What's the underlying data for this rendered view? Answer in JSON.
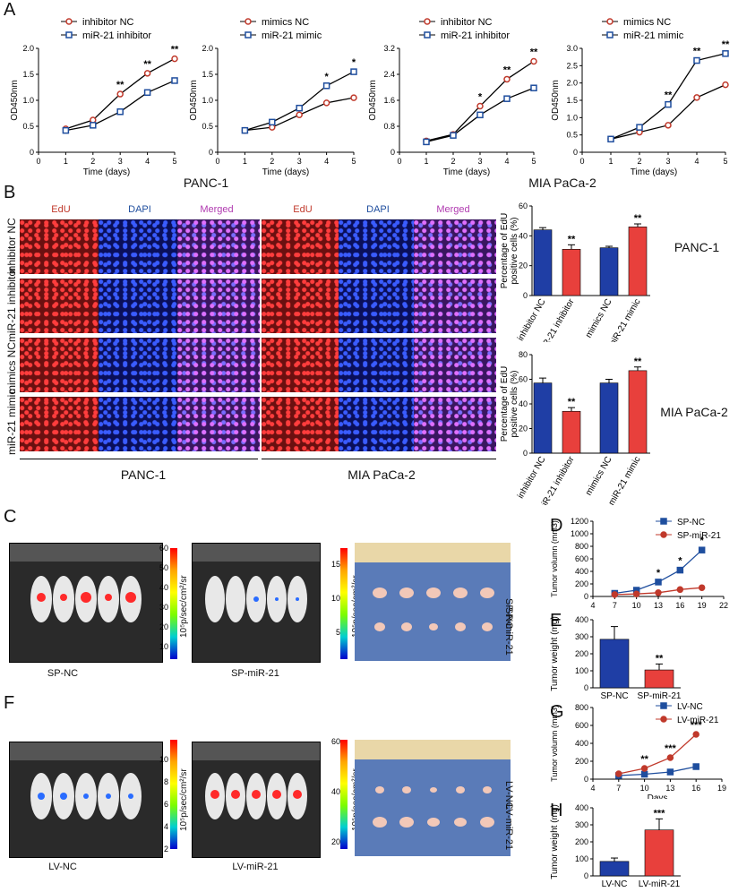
{
  "panels": {
    "A": "A",
    "B": "B",
    "C": "C",
    "D": "D",
    "E": "E",
    "F": "F",
    "G": "G",
    "H": "H"
  },
  "colors": {
    "nc": "#c0392b",
    "treat": "#1f4e9e",
    "bar_blue": "#1f3ea5",
    "bar_red": "#e8403c"
  },
  "cell_lines": {
    "panc": "PANC-1",
    "mia": "MIA PaCa-2"
  },
  "panel_B": {
    "channels": [
      "EdU",
      "DAPI",
      "Merged"
    ],
    "rows": [
      "inhibitor NC",
      "miR-21 inhibitor",
      "mimics NC",
      "miR-21 mimic"
    ]
  },
  "panel_C": {
    "labels": [
      "SP-NC",
      "SP-miR-21"
    ],
    "unit": "10⁵p/sec/cm²/sr",
    "scale_left": [
      "60",
      "50",
      "40",
      "30",
      "20",
      "10"
    ],
    "scale_right": [
      "15",
      "10",
      "5"
    ],
    "tray_labels": [
      "SP-NC",
      "SP-miR-21"
    ]
  },
  "panel_F": {
    "labels": [
      "LV-NC",
      "LV-miR-21"
    ],
    "unit": "10⁵p/sec/cm²/sr",
    "scale_left": [
      "10",
      "8",
      "6",
      "4",
      "2"
    ],
    "scale_right": [
      "60",
      "40",
      "20"
    ],
    "tray_labels": [
      "LV-NC",
      "LV-miR-21"
    ]
  },
  "chart_data": [
    {
      "id": "A1",
      "type": "line",
      "title": "",
      "xlabel": "Time (days)",
      "ylabel": "OD450nm",
      "xlim": [
        0,
        5
      ],
      "ylim": [
        0,
        2.0
      ],
      "yticks": [
        "0",
        "0.5",
        "1.0",
        "1.5",
        "2.0"
      ],
      "xticks": [
        "0",
        "1",
        "2",
        "3",
        "4",
        "5"
      ],
      "x": [
        1,
        2,
        3,
        4,
        5
      ],
      "series": [
        {
          "name": "inhibitor NC",
          "values": [
            0.45,
            0.62,
            1.12,
            1.52,
            1.8
          ],
          "role": "nc"
        },
        {
          "name": "miR-21 inhibitor",
          "values": [
            0.42,
            0.52,
            0.78,
            1.15,
            1.38
          ],
          "role": "treat"
        }
      ],
      "sig": [
        "",
        "",
        "**",
        "**",
        "**"
      ]
    },
    {
      "id": "A2",
      "type": "line",
      "title": "",
      "xlabel": "Time (days)",
      "ylabel": "OD450nm",
      "xlim": [
        0,
        5
      ],
      "ylim": [
        0,
        2.0
      ],
      "yticks": [
        "0",
        "0.5",
        "1.0",
        "1.5",
        "2.0"
      ],
      "xticks": [
        "0",
        "1",
        "2",
        "3",
        "4",
        "5"
      ],
      "x": [
        1,
        2,
        3,
        4,
        5
      ],
      "series": [
        {
          "name": "mimics NC",
          "values": [
            0.42,
            0.48,
            0.72,
            0.95,
            1.05
          ],
          "role": "nc"
        },
        {
          "name": "miR-21 mimic",
          "values": [
            0.42,
            0.58,
            0.85,
            1.28,
            1.55
          ],
          "role": "treat"
        }
      ],
      "sig": [
        "",
        "",
        "",
        "*",
        "*"
      ]
    },
    {
      "id": "A3",
      "type": "line",
      "title": "",
      "xlabel": "Time (days)",
      "ylabel": "OD450nm",
      "xlim": [
        0,
        5
      ],
      "ylim": [
        0,
        3.2
      ],
      "yticks": [
        "0",
        "0.8",
        "1.6",
        "2.4",
        "3.2"
      ],
      "xticks": [
        "0",
        "1",
        "2",
        "3",
        "4",
        "5"
      ],
      "x": [
        1,
        2,
        3,
        4,
        5
      ],
      "series": [
        {
          "name": "inhibitor NC",
          "values": [
            0.35,
            0.55,
            1.42,
            2.25,
            2.8
          ],
          "role": "nc"
        },
        {
          "name": "miR-21 inhibitor",
          "values": [
            0.32,
            0.52,
            1.15,
            1.65,
            1.98
          ],
          "role": "treat"
        }
      ],
      "sig": [
        "",
        "",
        "*",
        "**",
        "**"
      ]
    },
    {
      "id": "A4",
      "type": "line",
      "title": "",
      "xlabel": "Time (days)",
      "ylabel": "OD450nm",
      "xlim": [
        0,
        5
      ],
      "ylim": [
        0,
        3.0
      ],
      "yticks": [
        "0",
        "0.5",
        "1.0",
        "1.5",
        "2.0",
        "2.5",
        "3.0"
      ],
      "xticks": [
        "0",
        "1",
        "2",
        "3",
        "4",
        "5"
      ],
      "x": [
        1,
        2,
        3,
        4,
        5
      ],
      "series": [
        {
          "name": "mimics NC",
          "values": [
            0.38,
            0.58,
            0.78,
            1.58,
            1.95
          ],
          "role": "nc"
        },
        {
          "name": "miR-21 mimic",
          "values": [
            0.38,
            0.72,
            1.38,
            2.65,
            2.85
          ],
          "role": "treat"
        }
      ],
      "sig": [
        "",
        "",
        "**",
        "**",
        "**"
      ]
    },
    {
      "id": "B1",
      "type": "bar",
      "ylabel": "Percentage of EdU positive cells (%)",
      "ylim": [
        0,
        60
      ],
      "yticks": [
        "0",
        "20",
        "40",
        "60"
      ],
      "categories": [
        "inhibitor NC",
        "miR-21 inhibitor",
        "mimics NC",
        "miR-21 mimic"
      ],
      "values": [
        44,
        31,
        32,
        46
      ],
      "errors": [
        1.5,
        3,
        1,
        2
      ],
      "sig": [
        "",
        "**",
        "",
        "**"
      ],
      "line": "PANC-1"
    },
    {
      "id": "B2",
      "type": "bar",
      "ylabel": "Percentage of EdU positive cells (%)",
      "ylim": [
        0,
        80
      ],
      "yticks": [
        "0",
        "20",
        "40",
        "60",
        "80"
      ],
      "categories": [
        "inhibitor NC",
        "miR-21 inhibitor",
        "mimics NC",
        "miR-21 mimic"
      ],
      "values": [
        57,
        34,
        57,
        67
      ],
      "errors": [
        4,
        3,
        3,
        3
      ],
      "sig": [
        "",
        "**",
        "",
        "**"
      ],
      "line": "MIA PaCa-2"
    },
    {
      "id": "D",
      "type": "line",
      "xlabel": "Days",
      "ylabel": "Tumor volumn (mm3)",
      "xlim": [
        4,
        22
      ],
      "ylim": [
        0,
        1200
      ],
      "yticks": [
        "0",
        "200",
        "400",
        "600",
        "800",
        "1000",
        "1200"
      ],
      "xticks": [
        "4",
        "7",
        "10",
        "13",
        "16",
        "19",
        "22"
      ],
      "x": [
        7,
        10,
        13,
        16,
        19
      ],
      "series": [
        {
          "name": "SP-NC",
          "values": [
            50,
            100,
            230,
            420,
            740
          ],
          "role": "treat"
        },
        {
          "name": "SP-miR-21",
          "values": [
            30,
            40,
            60,
            110,
            140
          ],
          "role": "nc"
        }
      ],
      "sig": [
        "",
        "",
        "*",
        "*",
        "*"
      ]
    },
    {
      "id": "E",
      "type": "bar",
      "ylabel": "Tumor weight (mg)",
      "ylim": [
        0,
        400
      ],
      "yticks": [
        "0",
        "100",
        "200",
        "300",
        "400"
      ],
      "categories": [
        "SP-NC",
        "SP-miR-21"
      ],
      "values": [
        285,
        105
      ],
      "errors": [
        75,
        35
      ],
      "sig": [
        "",
        "**"
      ]
    },
    {
      "id": "G",
      "type": "line",
      "xlabel": "Days",
      "ylabel": "Tumor volumn (mm3)",
      "xlim": [
        4,
        19
      ],
      "ylim": [
        0,
        800
      ],
      "yticks": [
        "0",
        "200",
        "400",
        "600",
        "800"
      ],
      "xticks": [
        "4",
        "7",
        "10",
        "13",
        "16",
        "19"
      ],
      "x": [
        7,
        10,
        13,
        16
      ],
      "series": [
        {
          "name": "LV-NC",
          "values": [
            40,
            55,
            80,
            140
          ],
          "role": "treat"
        },
        {
          "name": "LV-miR-21",
          "values": [
            60,
            120,
            240,
            500
          ],
          "role": "nc"
        }
      ],
      "sig": [
        "",
        "**",
        "***",
        "***"
      ]
    },
    {
      "id": "H",
      "type": "bar",
      "ylabel": "Tumor weight (mg)",
      "ylim": [
        0,
        400
      ],
      "yticks": [
        "0",
        "100",
        "200",
        "300",
        "400"
      ],
      "categories": [
        "LV-NC",
        "LV-miR-21"
      ],
      "values": [
        85,
        270
      ],
      "errors": [
        20,
        65
      ],
      "sig": [
        "",
        "***"
      ]
    }
  ]
}
